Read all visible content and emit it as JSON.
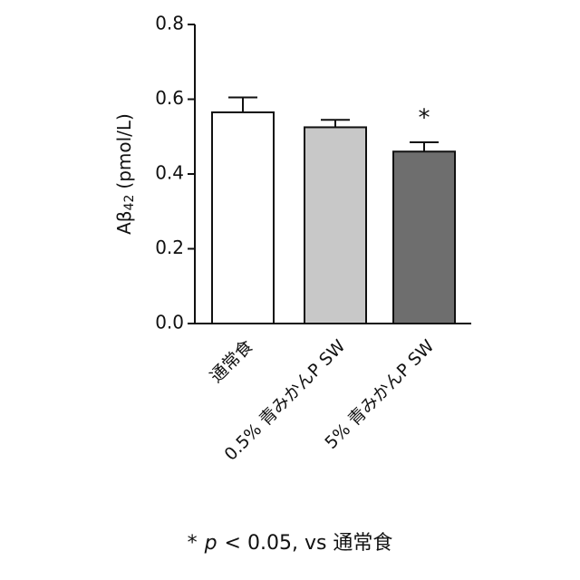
{
  "chart_data": {
    "type": "bar",
    "y_label": {
      "base": "Aβ",
      "sub": "42",
      "unit": "(pmol/L)"
    },
    "categories": [
      "通常食",
      "0.5% 青みかんP SW",
      "5% 青みかんP SW"
    ],
    "values": [
      0.565,
      0.525,
      0.46
    ],
    "errors": [
      0.04,
      0.02,
      0.025
    ],
    "colors": [
      "#ffffff",
      "#c8c8c8",
      "#6e6e6e"
    ],
    "significance": [
      null,
      null,
      "*"
    ],
    "ylim": [
      0,
      0.8
    ],
    "yticks": [
      {
        "value": 0,
        "label": "0.0"
      },
      0.2,
      0.4,
      0.6,
      0.8
    ],
    "grid": false,
    "footnote": {
      "mark": "*",
      "p": "p",
      "rest": "< 0.05, vs 通常食"
    }
  }
}
